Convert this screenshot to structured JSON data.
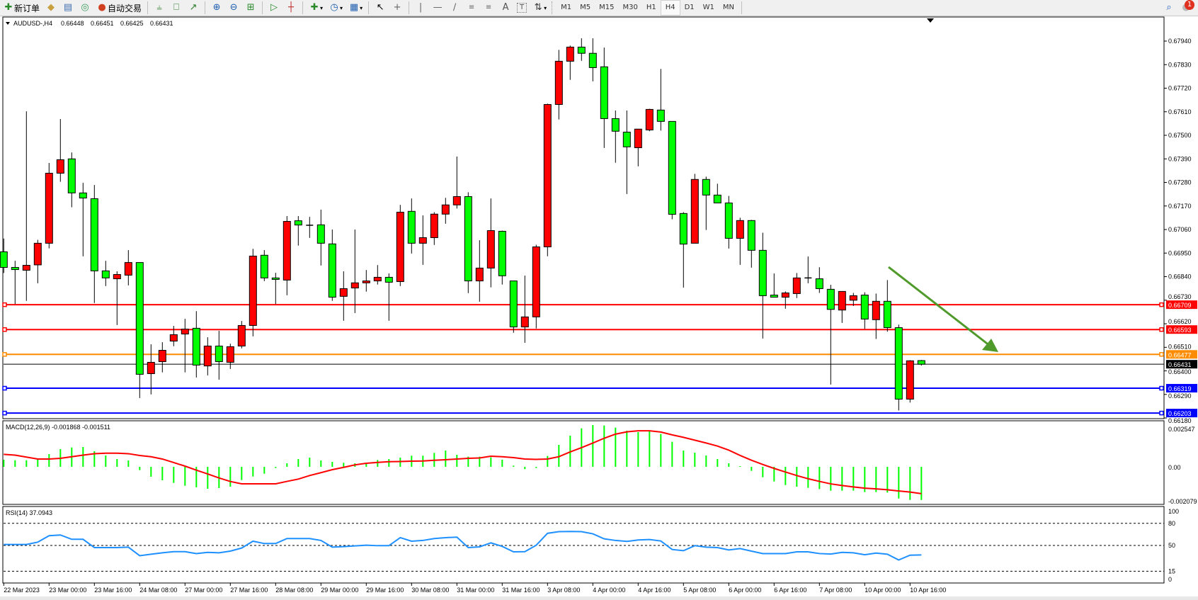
{
  "toolbar": {
    "new_order": "新订单",
    "auto_trade": "自动交易",
    "timeframes": [
      "M1",
      "M5",
      "M15",
      "M30",
      "H1",
      "H4",
      "D1",
      "W1",
      "MN"
    ],
    "active_timeframe": "H4",
    "notification_count": "1",
    "icons": [
      "new-order-icon",
      "history-icon",
      "terminal-icon",
      "signal-icon",
      "auto-trade-icon",
      "bar-chart-icon",
      "candlestick-icon",
      "line-chart-icon",
      "zoom-in-icon",
      "zoom-out-icon",
      "tile-windows-icon",
      "chart-shift-icon",
      "autoscroll-icon",
      "indicators-icon",
      "periods-icon",
      "templates-icon",
      "cursor-icon",
      "crosshair-icon",
      "vertical-line-icon",
      "horizontal-line-icon",
      "trendline-icon",
      "fibonacci-icon",
      "fibonacci-fan-icon",
      "text-icon",
      "text-label-icon",
      "arrows-icon",
      "search-icon",
      "notification-icon"
    ]
  },
  "chart_data": {
    "type": "candlestick",
    "symbol": "AUDUSD-,H4",
    "header_values": [
      "0.66448",
      "0.66451",
      "0.66425",
      "0.66431"
    ],
    "bull_color": "#ff0000",
    "bear_color": "#00ff00",
    "ylim": [
      0.6618,
      0.6805
    ],
    "price_ticks": [
      "0.67940",
      "0.67830",
      "0.67720",
      "0.67610",
      "0.67500",
      "0.67390",
      "0.67280",
      "0.67170",
      "0.67060",
      "0.66950",
      "0.66840",
      "0.66730",
      "0.66620",
      "0.66510",
      "0.66400",
      "0.66290",
      "0.66180"
    ],
    "candles_ohlc": [
      [
        0.66956,
        0.67018,
        0.66857,
        0.66883
      ],
      [
        0.66883,
        0.66914,
        0.66712,
        0.66873
      ],
      [
        0.6687,
        0.67612,
        0.66727,
        0.66893
      ],
      [
        0.66895,
        0.67012,
        0.66809,
        0.66996
      ],
      [
        0.66996,
        0.67371,
        0.66972,
        0.67323
      ],
      [
        0.67323,
        0.67576,
        0.67283,
        0.67386
      ],
      [
        0.6739,
        0.6742,
        0.67164,
        0.67231
      ],
      [
        0.67231,
        0.67278,
        0.66935,
        0.67207
      ],
      [
        0.67204,
        0.67268,
        0.66717,
        0.66867
      ],
      [
        0.66867,
        0.66914,
        0.66796,
        0.66834
      ],
      [
        0.6683,
        0.66865,
        0.66614,
        0.6685
      ],
      [
        0.66847,
        0.66964,
        0.66799,
        0.66906
      ],
      [
        0.66906,
        0.66906,
        0.66273,
        0.66384
      ],
      [
        0.66387,
        0.66524,
        0.6629,
        0.6644
      ],
      [
        0.66443,
        0.66534,
        0.66393,
        0.66496
      ],
      [
        0.66539,
        0.6661,
        0.66515,
        0.66569
      ],
      [
        0.66572,
        0.66643,
        0.66393,
        0.66595
      ],
      [
        0.66599,
        0.66679,
        0.66369,
        0.66427
      ],
      [
        0.66423,
        0.66557,
        0.66379,
        0.66516
      ],
      [
        0.66516,
        0.66587,
        0.66359,
        0.66443
      ],
      [
        0.6644,
        0.66527,
        0.66409,
        0.66513
      ],
      [
        0.66516,
        0.66633,
        0.66505,
        0.66612
      ],
      [
        0.66612,
        0.6697,
        0.66561,
        0.66936
      ],
      [
        0.6694,
        0.66964,
        0.66819,
        0.66834
      ],
      [
        0.66834,
        0.66858,
        0.66712,
        0.66827
      ],
      [
        0.66824,
        0.67123,
        0.66753,
        0.67098
      ],
      [
        0.67101,
        0.67123,
        0.66985,
        0.67081
      ],
      [
        0.6708,
        0.67119,
        0.67021,
        0.6708
      ],
      [
        0.67082,
        0.67153,
        0.66892,
        0.66996
      ],
      [
        0.66993,
        0.6706,
        0.66727,
        0.66744
      ],
      [
        0.66748,
        0.66865,
        0.66634,
        0.66784
      ],
      [
        0.66787,
        0.6706,
        0.6667,
        0.66811
      ],
      [
        0.66811,
        0.66871,
        0.6677,
        0.6682
      ],
      [
        0.6682,
        0.66894,
        0.66803,
        0.66837
      ],
      [
        0.66837,
        0.66855,
        0.66634,
        0.66814
      ],
      [
        0.66817,
        0.67175,
        0.66796,
        0.67141
      ],
      [
        0.67145,
        0.67205,
        0.66948,
        0.66996
      ],
      [
        0.66996,
        0.67126,
        0.66895,
        0.67022
      ],
      [
        0.67022,
        0.67141,
        0.66988,
        0.67132
      ],
      [
        0.67132,
        0.67208,
        0.67087,
        0.67175
      ],
      [
        0.67175,
        0.67401,
        0.67158,
        0.67214
      ],
      [
        0.67214,
        0.67234,
        0.66763,
        0.6682
      ],
      [
        0.6682,
        0.6701,
        0.66723,
        0.6688
      ],
      [
        0.6688,
        0.67205,
        0.6679,
        0.67055
      ],
      [
        0.67052,
        0.67055,
        0.66803,
        0.66844
      ],
      [
        0.6682,
        0.6682,
        0.66578,
        0.66605
      ],
      [
        0.66605,
        0.66845,
        0.66531,
        0.66652
      ],
      [
        0.66652,
        0.66989,
        0.66598,
        0.66979
      ],
      [
        0.66979,
        0.67648,
        0.66935,
        0.67644
      ],
      [
        0.67644,
        0.67899,
        0.67574,
        0.67846
      ],
      [
        0.67846,
        0.67919,
        0.67759,
        0.67912
      ],
      [
        0.67912,
        0.67953,
        0.67848,
        0.67883
      ],
      [
        0.67883,
        0.67953,
        0.67752,
        0.67816
      ],
      [
        0.6782,
        0.6791,
        0.67441,
        0.67578
      ],
      [
        0.67578,
        0.67616,
        0.67372,
        0.67519
      ],
      [
        0.67515,
        0.67616,
        0.67226,
        0.67446
      ],
      [
        0.67442,
        0.67529,
        0.67355,
        0.67529
      ],
      [
        0.67525,
        0.67624,
        0.67519,
        0.67621
      ],
      [
        0.67618,
        0.6781,
        0.67522,
        0.67565
      ],
      [
        0.67565,
        0.67565,
        0.67108,
        0.67131
      ],
      [
        0.67135,
        0.67141,
        0.66789,
        0.66992
      ],
      [
        0.66996,
        0.6732,
        0.66996,
        0.67294
      ],
      [
        0.67294,
        0.67307,
        0.67058,
        0.67221
      ],
      [
        0.67221,
        0.67274,
        0.67184,
        0.67184
      ],
      [
        0.67184,
        0.67217,
        0.66971,
        0.67019
      ],
      [
        0.67019,
        0.67115,
        0.66895,
        0.67102
      ],
      [
        0.67102,
        0.67105,
        0.66882,
        0.66963
      ],
      [
        0.66963,
        0.67045,
        0.66551,
        0.66751
      ],
      [
        0.66754,
        0.66855,
        0.66744,
        0.66744
      ],
      [
        0.66744,
        0.66771,
        0.6669,
        0.66764
      ],
      [
        0.66761,
        0.66857,
        0.6674,
        0.66834
      ],
      [
        0.66834,
        0.66934,
        0.66809,
        0.66834
      ],
      [
        0.6683,
        0.66884,
        0.66764,
        0.66784
      ],
      [
        0.66781,
        0.66802,
        0.66336,
        0.66687
      ],
      [
        0.66684,
        0.66771,
        0.66624,
        0.66771
      ],
      [
        0.6673,
        0.66764,
        0.66703,
        0.66751
      ],
      [
        0.66754,
        0.66767,
        0.66596,
        0.66642
      ],
      [
        0.66639,
        0.66761,
        0.66549,
        0.66725
      ],
      [
        0.66725,
        0.66824,
        0.66583,
        0.66602
      ],
      [
        0.66602,
        0.66616,
        0.66215,
        0.66268
      ],
      [
        0.66268,
        0.6645,
        0.66252,
        0.66447
      ],
      [
        0.66448,
        0.66451,
        0.66425,
        0.66431
      ]
    ],
    "horizontal_lines": [
      {
        "price": "0.66709",
        "color": "#ff0000"
      },
      {
        "price": "0.66593",
        "color": "#ff0000"
      },
      {
        "price": "0.66477",
        "color": "#ff8c00"
      },
      {
        "price": "0.66319",
        "color": "#0000ff"
      },
      {
        "price": "0.66203",
        "color": "#0000ff"
      }
    ],
    "last_price": "0.66431",
    "arrow_color": "#4f9a2a",
    "time_labels": [
      {
        "index": 0,
        "label": "22 Mar 2023"
      },
      {
        "index": 4,
        "label": "23 Mar 00:00"
      },
      {
        "index": 8,
        "label": "23 Mar 16:00"
      },
      {
        "index": 12,
        "label": "24 Mar 08:00"
      },
      {
        "index": 16,
        "label": "27 Mar 00:00"
      },
      {
        "index": 20,
        "label": "27 Mar 16:00"
      },
      {
        "index": 24,
        "label": "28 Mar 08:00"
      },
      {
        "index": 28,
        "label": "29 Mar 00:00"
      },
      {
        "index": 32,
        "label": "29 Mar 16:00"
      },
      {
        "index": 36,
        "label": "30 Mar 08:00"
      },
      {
        "index": 40,
        "label": "31 Mar 00:00"
      },
      {
        "index": 44,
        "label": "31 Mar 16:00"
      },
      {
        "index": 48,
        "label": "3 Apr 08:00"
      },
      {
        "index": 52,
        "label": "4 Apr 00:00"
      },
      {
        "index": 56,
        "label": "4 Apr 16:00"
      },
      {
        "index": 60,
        "label": "5 Apr 08:00"
      },
      {
        "index": 64,
        "label": "6 Apr 00:00"
      },
      {
        "index": 68,
        "label": "6 Apr 16:00"
      },
      {
        "index": 72,
        "label": "7 Apr 08:00"
      },
      {
        "index": 76,
        "label": "10 Apr 00:00"
      },
      {
        "index": 80,
        "label": "10 Apr 16:00"
      }
    ]
  },
  "macd": {
    "title": "MACD(12,26,9) -0.001868 -0.001511",
    "axis_labels": [
      "0.002547",
      "0.00",
      "-0.002079"
    ],
    "range": [
      -0.002079,
      0.002547
    ],
    "histogram_color": "#00ff00",
    "signal_color": "#ff0000",
    "histogram": [
      0.000399,
      0.000372,
      0.000372,
      0.000399,
      0.000718,
      0.000998,
      0.001091,
      0.001117,
      0.000878,
      0.000638,
      0.000439,
      0.000359,
      -0.000186,
      -0.000559,
      -0.000758,
      -0.000904,
      -0.001064,
      -0.001157,
      -0.001237,
      -0.001197,
      -0.001117,
      -0.000745,
      -0.000545,
      -0.000386,
      -6.7e-05,
      0.0002,
      0.000439,
      0.000519,
      0.000359,
      0.000279,
      0.000226,
      0.0002,
      0.00016,
      0.000386,
      0.000439,
      0.000519,
      0.000625,
      0.000625,
      0.000785,
      0.000918,
      0.000678,
      0.000572,
      0.000572,
      0.000532,
      0.000399,
      6.7e-05,
      -0.000133,
      -6.7e-05,
      0.000612,
      0.001237,
      0.001756,
      0.002168,
      0.002354,
      0.002328,
      0.002208,
      0.002035,
      0.001955,
      0.002035,
      0.001849,
      0.00141,
      0.000918,
      0.000798,
      0.000638,
      0.000439,
      0.0002,
      4e-05,
      -0.000226,
      -0.000585,
      -0.000825,
      -0.001024,
      -0.001117,
      -0.001184,
      -0.00125,
      -0.001343,
      -0.001343,
      -0.001343,
      -0.001423,
      -0.001423,
      -0.00145,
      -0.001782,
      -0.001862,
      -0.001868
    ],
    "signal": [
      0.000705,
      0.00066,
      0.00055,
      0.00044,
      0.00044,
      0.00048,
      0.00057,
      0.00066,
      0.00074,
      0.00077,
      0.00077,
      0.00074,
      0.00064,
      0.00057,
      0.00044,
      0.00024,
      4e-05,
      -0.000186,
      -0.0004,
      -0.000625,
      -0.000825,
      -0.000958,
      -0.000958,
      -0.000958,
      -0.000958,
      -0.00082,
      -0.00069,
      -0.00049,
      -0.00033,
      -0.00016,
      -3e-05,
      0.00011,
      0.0002,
      0.00025,
      0.00029,
      0.0003,
      0.00032,
      0.00033,
      0.00037,
      0.0004,
      0.00044,
      0.00048,
      0.0005,
      0.0006,
      0.00057,
      0.00052,
      0.00044,
      0.00042,
      0.00044,
      0.00057,
      0.00084,
      0.00108,
      0.00134,
      0.00161,
      0.00184,
      0.00197,
      0.00203,
      0.00203,
      0.00196,
      0.0018,
      0.00166,
      0.0015,
      0.00134,
      0.00117,
      0.00094,
      0.00064,
      0.00037,
      0.00013,
      -9e-05,
      -0.00029,
      -0.00049,
      -0.00067,
      -0.00082,
      -0.00096,
      -0.00105,
      -0.00113,
      -0.0012,
      -0.00124,
      -0.00129,
      -0.00136,
      -0.00142,
      -0.001511
    ]
  },
  "rsi": {
    "title": "RSI(14) 37.0943",
    "axis_labels": [
      "100",
      "80",
      "50",
      "15",
      "0"
    ],
    "levels": [
      80,
      50,
      15
    ],
    "line_color": "#1e90ff",
    "values": [
      51.3,
      51.3,
      51.3,
      54.5,
      63.2,
      64.2,
      58.4,
      58.4,
      47.1,
      47.1,
      47.1,
      47.7,
      36.1,
      38.1,
      40,
      41.6,
      41.6,
      39,
      40.6,
      40,
      42.3,
      46.5,
      55.8,
      52.6,
      52.6,
      59.4,
      59.4,
      59.4,
      56.8,
      47.7,
      48.4,
      49.4,
      50.3,
      49.7,
      49.7,
      60.6,
      55.8,
      56.8,
      59.4,
      60.6,
      61.3,
      47.1,
      48.1,
      53.5,
      48.7,
      41.3,
      41.6,
      50.3,
      66.5,
      68.7,
      69,
      68.7,
      65.8,
      59,
      56.8,
      55.5,
      57.4,
      58.1,
      56.1,
      44.5,
      42.9,
      49.7,
      47.7,
      47.1,
      43.9,
      45.8,
      42.3,
      39,
      39,
      39,
      41.3,
      41.3,
      39,
      38.4,
      40.6,
      40,
      37.4,
      39.7,
      38.1,
      30.3,
      36.8,
      37.0943
    ]
  }
}
